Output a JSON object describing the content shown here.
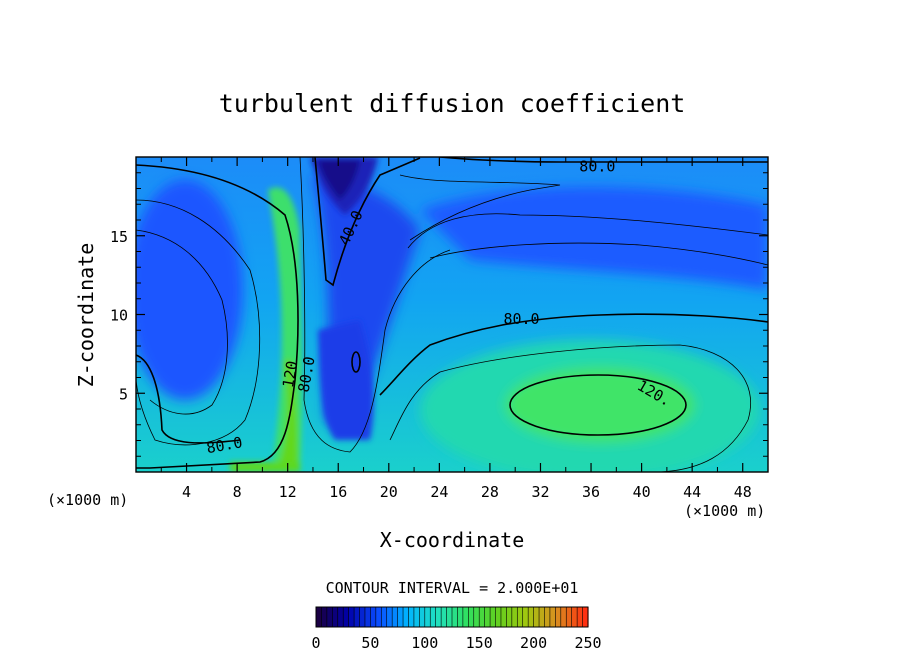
{
  "chart_data": {
    "type": "heatmap",
    "title": "turbulent diffusion coefficient",
    "xlabel": "X-coordinate",
    "ylabel": "Z-coordinate",
    "x_unit_left": "(×1000 m)",
    "x_unit_right": "(×1000 m)",
    "xlim": [
      0,
      50
    ],
    "ylim": [
      0,
      20
    ],
    "x_ticks": [
      4,
      8,
      12,
      16,
      20,
      24,
      28,
      32,
      36,
      40,
      44,
      48
    ],
    "y_ticks": [
      5,
      10,
      15
    ],
    "contour_interval_text": "CONTOUR INTERVAL = 2.000E+01",
    "contour_interval": 20,
    "contour_labels": [
      {
        "text": "80.0",
        "x": 36.5,
        "z": 19.4
      },
      {
        "text": "40.0",
        "x": 17.0,
        "z": 15.5
      },
      {
        "text": "80.0",
        "x": 30.5,
        "z": 9.7
      },
      {
        "text": "120",
        "x": 12.2,
        "z": 6.2
      },
      {
        "text": "80.0",
        "x": 13.5,
        "z": 6.2
      },
      {
        "text": "120.",
        "x": 41.0,
        "z": 5.0
      },
      {
        "text": "80.0",
        "x": 7.0,
        "z": 1.7
      }
    ],
    "colorbar": {
      "min": 0,
      "max": 250,
      "tick_labels": [
        "0",
        "50",
        "100",
        "150",
        "200",
        "250"
      ],
      "colors": [
        "#1a0044",
        "#0000aa",
        "#0a4cff",
        "#00b4ff",
        "#20e0c0",
        "#30e060",
        "#60d020",
        "#a0c810",
        "#d89020",
        "#ff3010"
      ]
    },
    "field_colors": {
      "blue_region": "#1a50ff",
      "mid_region": "#14aef0",
      "teal_region": "#18d8c0",
      "green_region": "#30e070",
      "lime_region": "#50d820"
    }
  }
}
